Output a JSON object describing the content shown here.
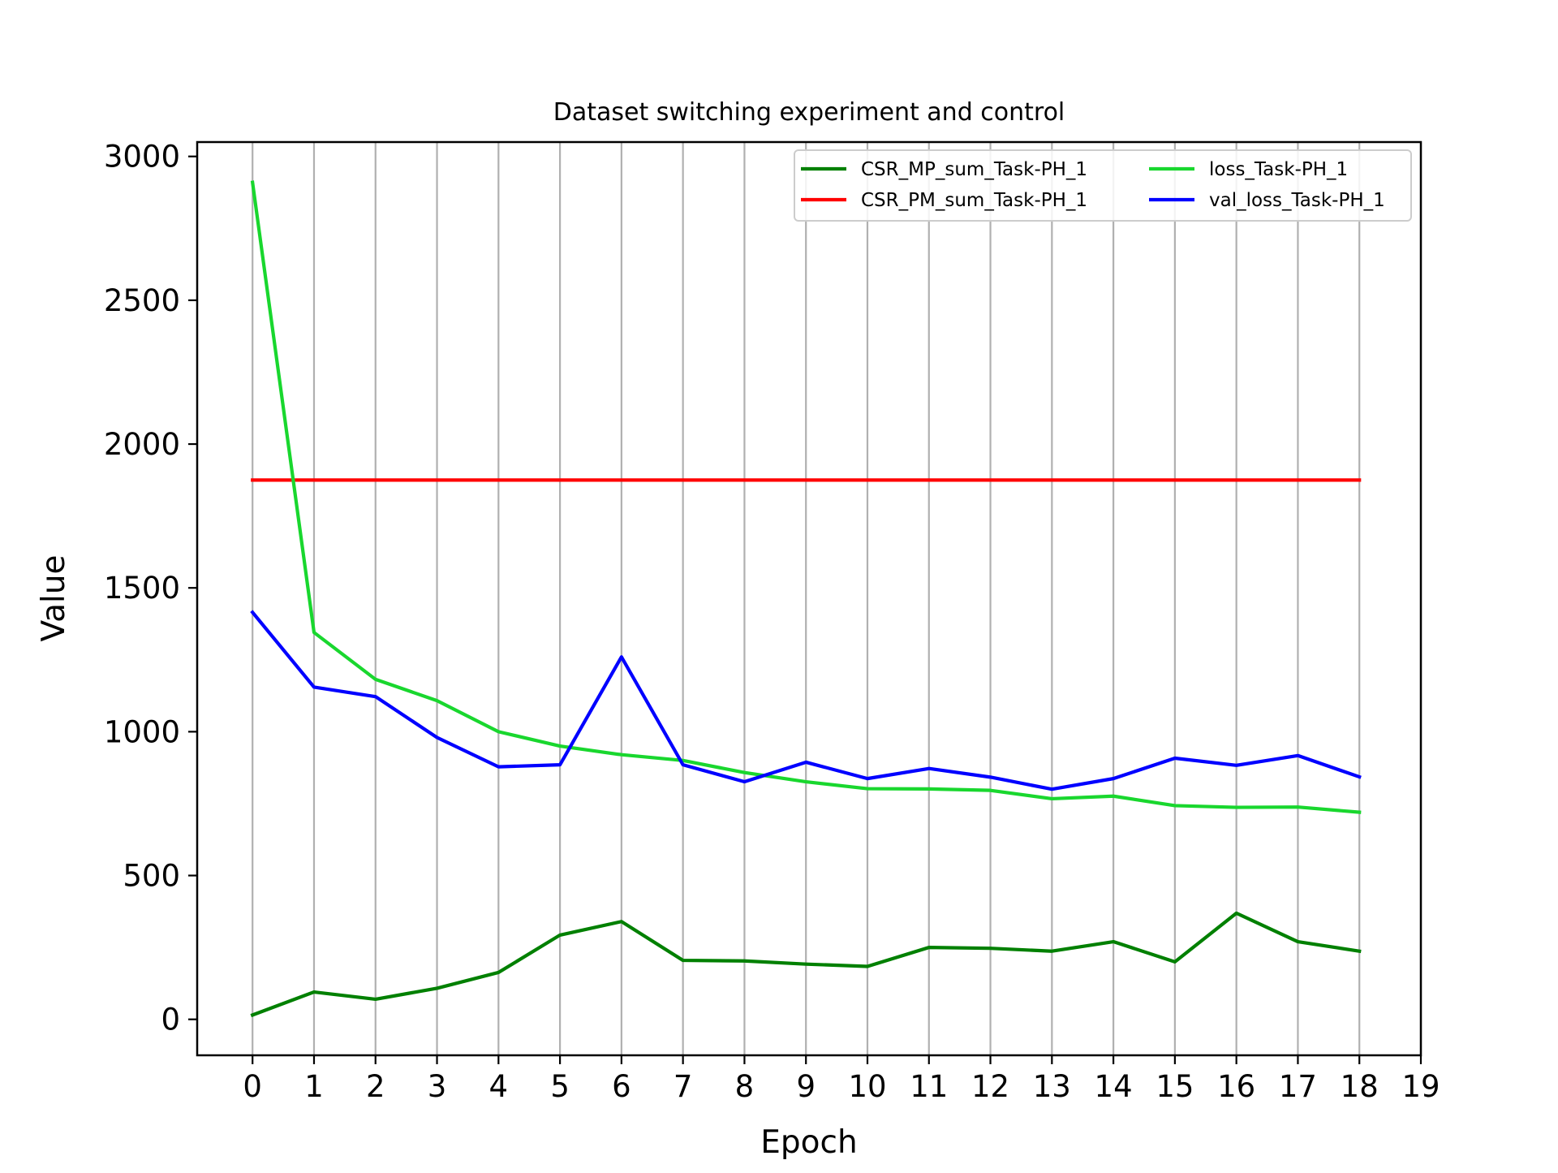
{
  "chart_data": {
    "type": "line",
    "title": "Dataset switching experiment and control",
    "xlabel": "Epoch",
    "ylabel": "Value",
    "xlim": [
      -0.9,
      19
    ],
    "ylim": [
      -125,
      3050
    ],
    "x_ticks": [
      0,
      1,
      2,
      3,
      4,
      5,
      6,
      7,
      8,
      9,
      10,
      11,
      12,
      13,
      14,
      15,
      16,
      17,
      18,
      19
    ],
    "y_ticks": [
      0,
      500,
      1000,
      1500,
      2000,
      2500,
      3000
    ],
    "grid": "vertical",
    "legend_position": "top-right",
    "legend_columns": 2,
    "x": [
      0,
      1,
      2,
      3,
      4,
      5,
      6,
      7,
      8,
      9,
      10,
      11,
      12,
      13,
      14,
      15,
      16,
      17,
      18
    ],
    "series": [
      {
        "name": "CSR_MP_sum_Task-PH_1",
        "color": "#008000",
        "values": [
          15,
          95,
          70,
          108,
          163,
          293,
          340,
          205,
          203,
          192,
          184,
          250,
          247,
          237,
          270,
          200,
          369,
          270,
          237
        ]
      },
      {
        "name": "CSR_PM_sum_Task-PH_1",
        "color": "#ff0000",
        "values": [
          1875,
          1875,
          1875,
          1875,
          1875,
          1875,
          1875,
          1875,
          1875,
          1875,
          1875,
          1875,
          1875,
          1875,
          1875,
          1875,
          1875,
          1875,
          1875
        ]
      },
      {
        "name": "loss_Task-PH_1",
        "color": "#19d72e",
        "values": [
          2910,
          1345,
          1182,
          1108,
          1000,
          950,
          920,
          900,
          858,
          826,
          802,
          801,
          796,
          767,
          776,
          743,
          737,
          738,
          720
        ]
      },
      {
        "name": "val_loss_Task-PH_1",
        "color": "#0000ff",
        "values": [
          1415,
          1155,
          1122,
          980,
          878,
          885,
          1260,
          885,
          826,
          894,
          837,
          872,
          842,
          800,
          837,
          908,
          883,
          917,
          843
        ]
      }
    ]
  }
}
